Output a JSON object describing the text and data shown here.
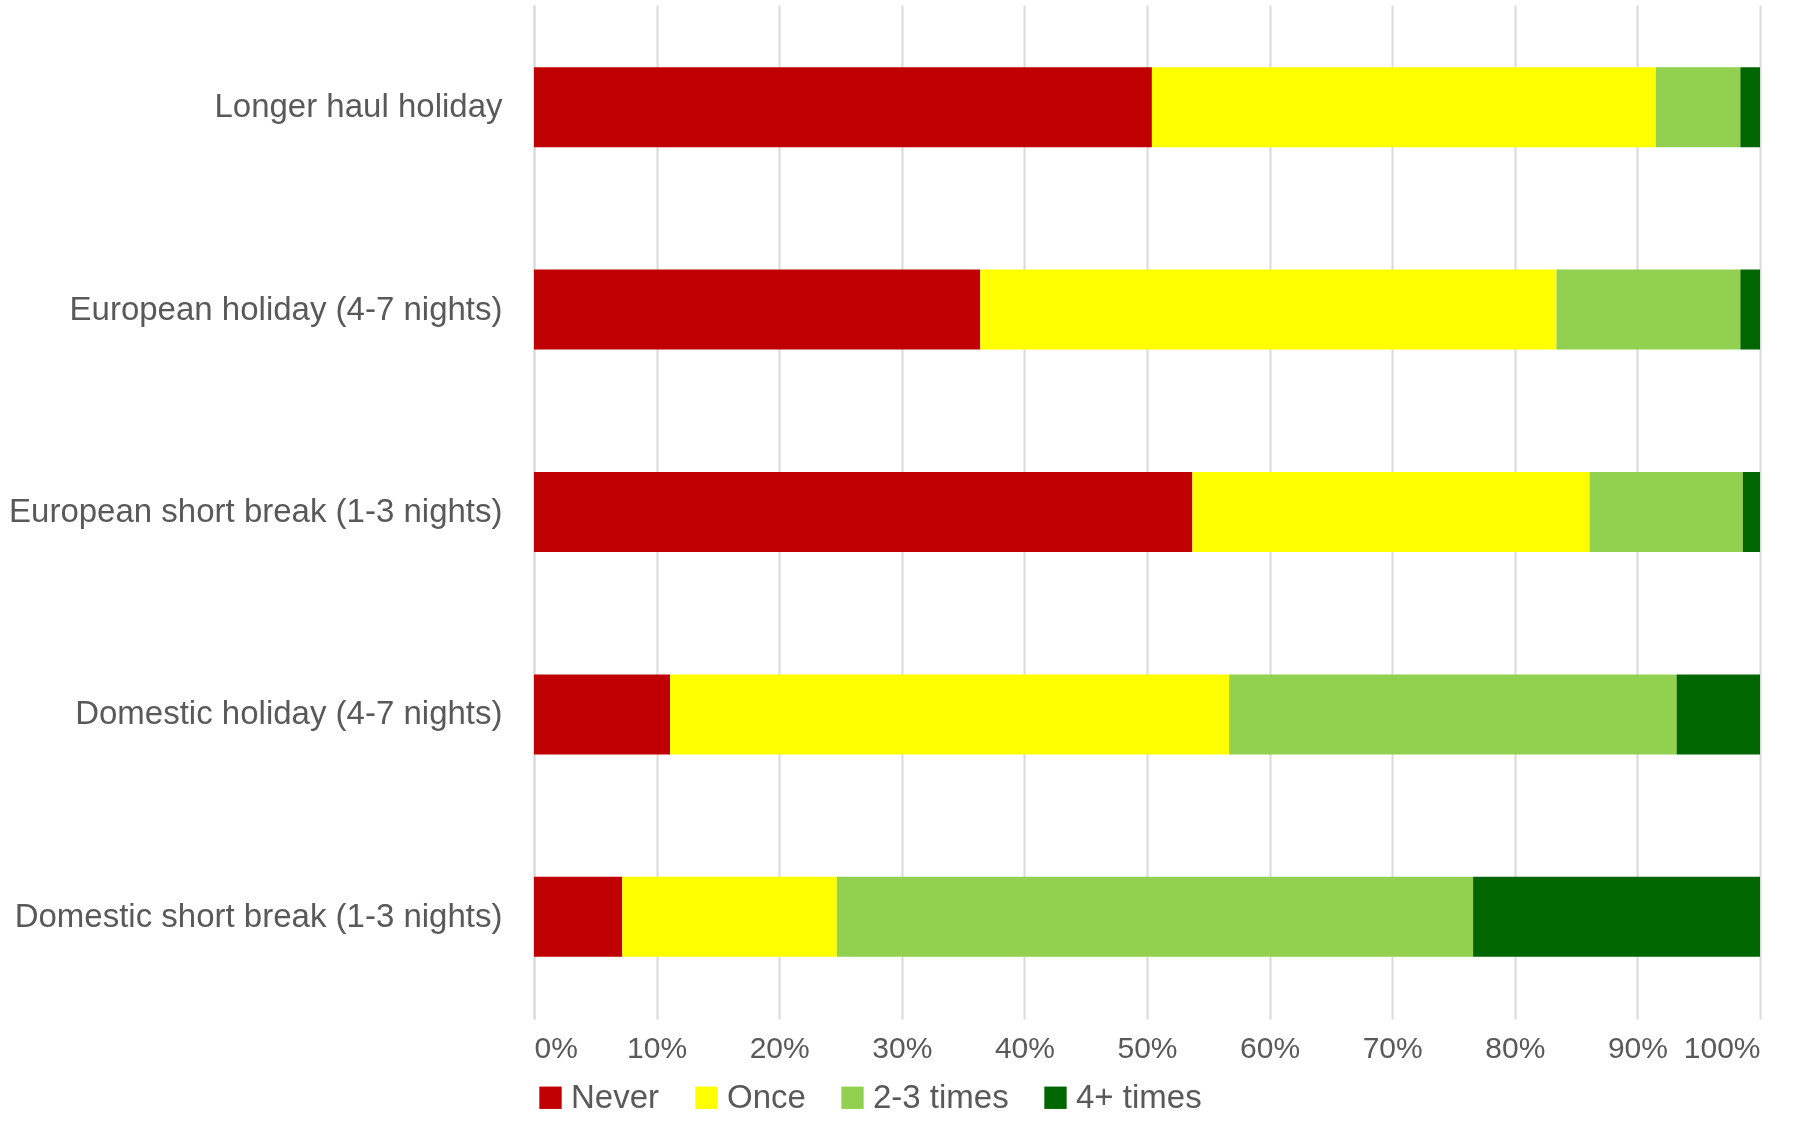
{
  "chart_data": {
    "type": "bar",
    "orientation": "horizontal",
    "stacked": true,
    "categories": [
      "Longer haul holiday",
      "European holiday (4-7 nights)",
      "European short break (1-3 nights)",
      "Domestic holiday (4-7 nights)",
      "Domestic short break (1-3 nights)"
    ],
    "series": [
      {
        "name": "Never",
        "color": "#c00000",
        "values": [
          50.4,
          36.4,
          53.7,
          11.1,
          7.2
        ]
      },
      {
        "name": "Once",
        "color": "#ffff00",
        "values": [
          41.1,
          47.0,
          32.4,
          45.6,
          17.5
        ]
      },
      {
        "name": "2-3 times",
        "color": "#92d050",
        "values": [
          6.9,
          15.0,
          12.5,
          36.5,
          51.9
        ]
      },
      {
        "name": "4+ times",
        "color": "#006600",
        "values": [
          1.6,
          1.6,
          1.4,
          6.8,
          23.4
        ]
      }
    ],
    "xlim": [
      0,
      100
    ],
    "xticks": [
      {
        "value": 0,
        "label": "0%"
      },
      {
        "value": 10,
        "label": "10%"
      },
      {
        "value": 20,
        "label": "20%"
      },
      {
        "value": 30,
        "label": "30%"
      },
      {
        "value": 40,
        "label": "40%"
      },
      {
        "value": 50,
        "label": "50%"
      },
      {
        "value": 60,
        "label": "60%"
      },
      {
        "value": 70,
        "label": "70%"
      },
      {
        "value": 80,
        "label": "80%"
      },
      {
        "value": 90,
        "label": "90%"
      },
      {
        "value": 100,
        "label": "100%"
      }
    ],
    "grid": "x",
    "legend": "bottom"
  }
}
